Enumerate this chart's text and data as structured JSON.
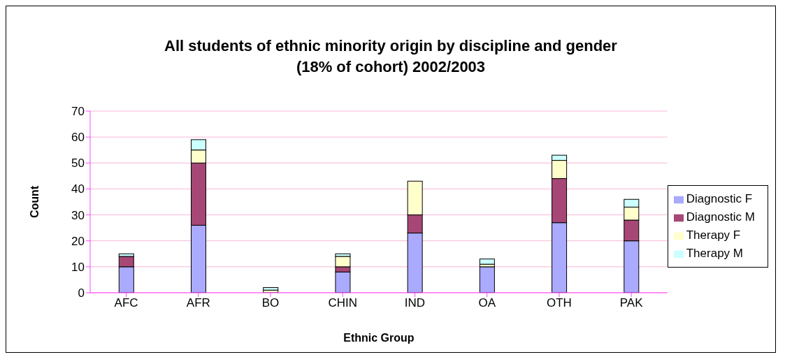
{
  "chart_data": {
    "type": "bar",
    "title": "All students of ethnic minority origin by discipline and gender\n(18% of cohort)  2002/2003",
    "xlabel": "Ethnic Group",
    "ylabel": "Count",
    "categories": [
      "AFC",
      "AFR",
      "BO",
      "CHIN",
      "IND",
      "OA",
      "OTH",
      "PAK"
    ],
    "stacked": true,
    "series": [
      {
        "name": "Diagnostic F",
        "color": "#aaaaff",
        "values": [
          10,
          26,
          0,
          8,
          23,
          10,
          27,
          20
        ]
      },
      {
        "name": "Diagnostic M",
        "color": "#a64776",
        "values": [
          4,
          24,
          0,
          2,
          7,
          0,
          17,
          8
        ]
      },
      {
        "name": "Therapy F",
        "color": "#ffffcc",
        "values": [
          0,
          5,
          1,
          4,
          13,
          1,
          7,
          5
        ]
      },
      {
        "name": "Therapy M",
        "color": "#ccffff",
        "values": [
          1,
          4,
          1,
          1,
          0,
          2,
          2,
          3
        ]
      }
    ],
    "ylim": [
      0,
      70
    ],
    "yticks": [
      0,
      10,
      20,
      30,
      40,
      50,
      60,
      70
    ],
    "grid": "y",
    "legend": "right"
  }
}
